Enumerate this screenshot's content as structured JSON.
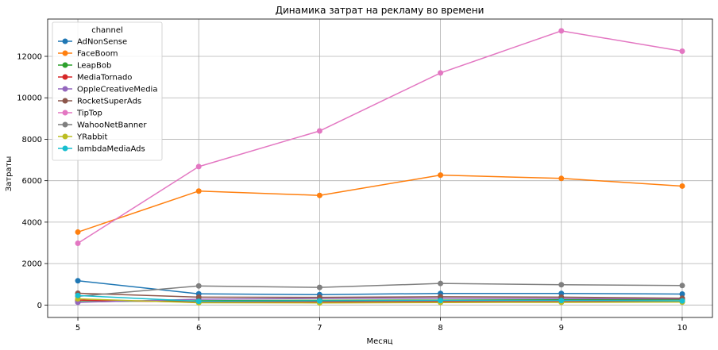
{
  "chart_data": {
    "type": "line",
    "title": "Динамика затрат на рекламу во времени",
    "xlabel": "Месяц",
    "ylabel": "Затраты",
    "x": [
      5,
      6,
      7,
      8,
      9,
      10
    ],
    "xticks": [
      "5",
      "6",
      "7",
      "8",
      "9",
      "10"
    ],
    "yticks": [
      "0",
      "2000",
      "4000",
      "6000",
      "8000",
      "10000",
      "12000"
    ],
    "ylim": [
      -600,
      13800
    ],
    "xlim": [
      4.75,
      10.25
    ],
    "grid": true,
    "legend": {
      "title": "channel",
      "placement": "top-left"
    },
    "series": [
      {
        "name": "AdNonSense",
        "color": "#1f77b4",
        "values": [
          1170,
          540,
          500,
          560,
          560,
          530
        ]
      },
      {
        "name": "FaceBoom",
        "color": "#ff7f0e",
        "values": [
          3520,
          5500,
          5290,
          6270,
          6110,
          5740
        ]
      },
      {
        "name": "LeapBob",
        "color": "#2ca02c",
        "values": [
          160,
          210,
          230,
          240,
          250,
          260
        ]
      },
      {
        "name": "MediaTornado",
        "color": "#d62728",
        "values": [
          240,
          140,
          150,
          170,
          160,
          160
        ]
      },
      {
        "name": "OppleCreativeMedia",
        "color": "#9467bd",
        "values": [
          130,
          280,
          320,
          330,
          310,
          300
        ]
      },
      {
        "name": "RocketSuperAds",
        "color": "#8c564b",
        "values": [
          570,
          380,
          370,
          400,
          380,
          330
        ]
      },
      {
        "name": "TipTop",
        "color": "#e377c2",
        "values": [
          2980,
          6680,
          8400,
          11200,
          13230,
          12250
        ]
      },
      {
        "name": "WahooNetBanner",
        "color": "#7f7f7f",
        "values": [
          420,
          920,
          850,
          1040,
          980,
          940
        ]
      },
      {
        "name": "YRabbit",
        "color": "#bcbd22",
        "values": [
          300,
          110,
          100,
          120,
          130,
          140
        ]
      },
      {
        "name": "lambdaMediaAds",
        "color": "#17becf",
        "values": [
          460,
          180,
          200,
          220,
          220,
          200
        ]
      }
    ]
  }
}
